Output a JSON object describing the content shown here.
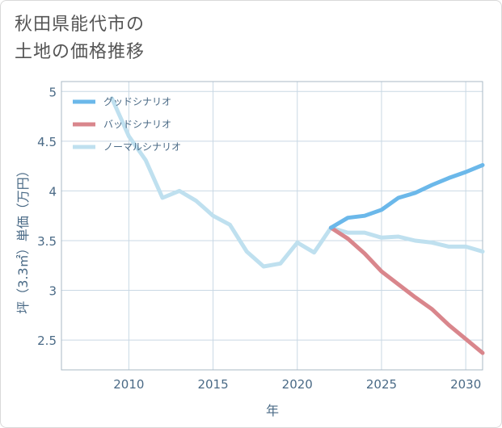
{
  "header": {
    "title_line1": "秋田県能代市の",
    "title_line2": "土地の価格推移"
  },
  "chart_data": {
    "type": "line",
    "xlabel": "年",
    "ylabel": "坪（3.3㎡）単価（万円）",
    "xlim": [
      2006,
      2031
    ],
    "ylim": [
      2.2,
      5.1
    ],
    "xticks": [
      2010,
      2015,
      2020,
      2025,
      2030
    ],
    "yticks": [
      2.5,
      3,
      3.5,
      4,
      4.5,
      5
    ],
    "legend_position": "top-left",
    "series": [
      {
        "name": "グッドシナリオ",
        "color": "#6bb8ea",
        "x": [
          2022,
          2023,
          2024,
          2025,
          2026,
          2027,
          2028,
          2029,
          2030,
          2031
        ],
        "y": [
          3.63,
          3.73,
          3.75,
          3.81,
          3.93,
          3.98,
          4.06,
          4.13,
          4.19,
          4.26
        ]
      },
      {
        "name": "バッドシナリオ",
        "color": "#d9868c",
        "x": [
          2022,
          2023,
          2024,
          2025,
          2026,
          2027,
          2028,
          2029,
          2030,
          2031
        ],
        "y": [
          3.63,
          3.52,
          3.37,
          3.19,
          3.06,
          2.93,
          2.81,
          2.65,
          2.51,
          2.37
        ]
      },
      {
        "name": "ノーマルシナリオ",
        "color": "#bfe0ef",
        "x": [
          2009,
          2010,
          2011,
          2012,
          2013,
          2014,
          2015,
          2016,
          2017,
          2018,
          2019,
          2020,
          2021,
          2022,
          2023,
          2024,
          2025,
          2026,
          2027,
          2028,
          2029,
          2030,
          2031
        ],
        "y": [
          4.93,
          4.55,
          4.31,
          3.93,
          4.0,
          3.9,
          3.75,
          3.66,
          3.39,
          3.24,
          3.27,
          3.48,
          3.38,
          3.63,
          3.58,
          3.58,
          3.53,
          3.54,
          3.5,
          3.48,
          3.44,
          3.44,
          3.39
        ]
      }
    ]
  }
}
